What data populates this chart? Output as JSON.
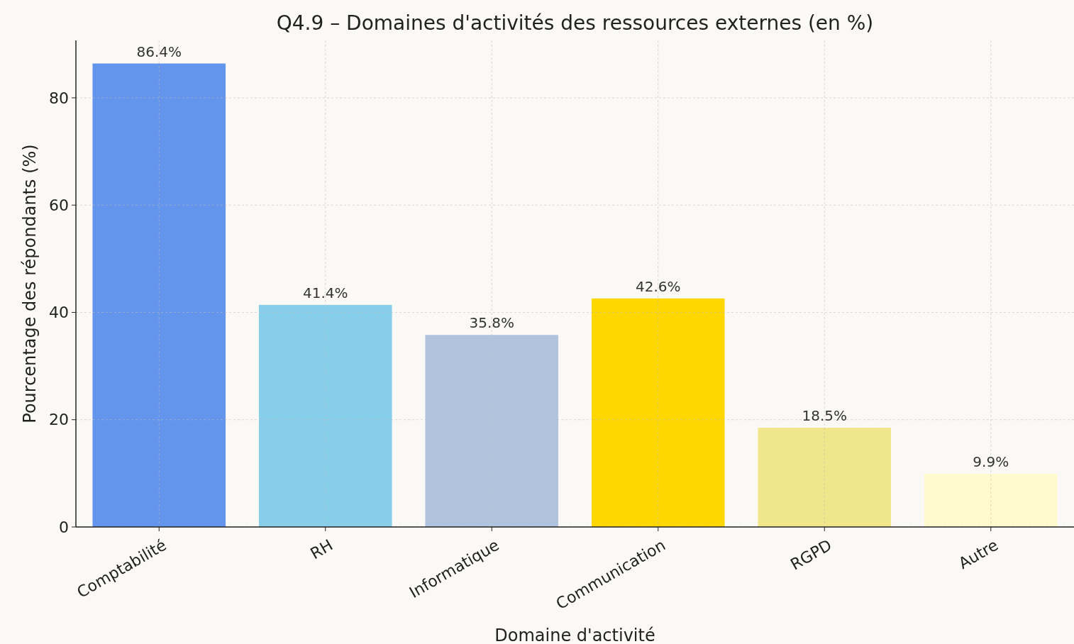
{
  "chart_data": {
    "type": "bar",
    "title": "Q4.9 – Domaines d'activités des ressources externes (en %)",
    "xlabel": "Domaine d'activité",
    "ylabel": "Pourcentage des répondants (%)",
    "categories": [
      "Comptabilité",
      "RH",
      "Informatique",
      "Communication",
      "RGPD",
      "Autre"
    ],
    "values": [
      86.4,
      41.4,
      35.8,
      42.6,
      18.5,
      9.9
    ],
    "colors": [
      "#6495ed",
      "#87ceeb",
      "#b0c4de",
      "#ffd700",
      "#f0e68c",
      "#fffacd"
    ],
    "value_labels": [
      "86.4%",
      "41.4%",
      "35.8%",
      "42.6%",
      "18.5%",
      "9.9%"
    ],
    "ylim": [
      0,
      90.7
    ],
    "yticks": [
      0,
      20,
      40,
      60,
      80
    ],
    "grid": true
  }
}
